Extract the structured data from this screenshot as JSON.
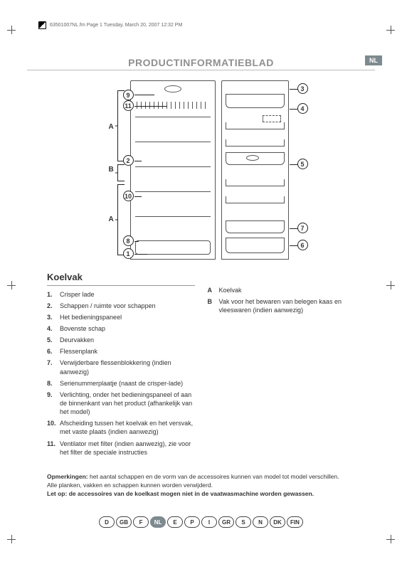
{
  "print_header": "63501007NL.fm  Page 1  Tuesday, March 20, 2007  12:32 PM",
  "title": "PRODUCTINFORMATIEBLAD",
  "lang_badge": "NL",
  "diagram": {
    "callouts_left": [
      "9",
      "11",
      "2",
      "10",
      "8",
      "1"
    ],
    "callouts_right": [
      "3",
      "4",
      "5",
      "7",
      "6"
    ],
    "section_labels": [
      "A",
      "B",
      "A"
    ]
  },
  "section_heading": "Koelvak",
  "list_items": [
    "Crisper lade",
    "Schappen / ruimte voor schappen",
    "Het bedieningspaneel",
    "Bovenste schap",
    "Deurvakken",
    "Flessenplank",
    "Verwijderbare flessenblokkering (indien aanwezig)",
    "Serienummerplaatje (naast de crisper-lade)",
    "Verlichting, onder het bedieningspaneel of aan de binnenkant van het product (afhankelijk van het model)",
    "Afscheiding tussen het koelvak en het versvak, met vaste plaats (indien aanwezig)",
    "Ventilator met filter (indien aanwezig), zie voor het filter de speciale instructies"
  ],
  "ab_items": [
    {
      "k": "A",
      "v": "Koelvak"
    },
    {
      "k": "B",
      "v": "Vak voor het bewaren van belegen kaas en vleeswaren (indien aanwezig)"
    }
  ],
  "remarks": {
    "label": "Opmerkingen:",
    "line1": " het aantal schappen en de vorm van de accessoires kunnen van model tot model verschillen.",
    "line2": "Alle planken, vakken en schappen kunnen worden verwijderd.",
    "bold": "Let op: de accessoires van de koelkast mogen niet in de vaatwasmachine worden gewassen."
  },
  "languages": [
    "D",
    "GB",
    "F",
    "NL",
    "E",
    "P",
    "I",
    "GR",
    "S",
    "N",
    "DK",
    "FIN"
  ],
  "active_lang": "NL",
  "colors": {
    "accent": "#7d8a8f",
    "text": "#333333",
    "line": "#555555",
    "muted_title": "#8f8f8f"
  }
}
